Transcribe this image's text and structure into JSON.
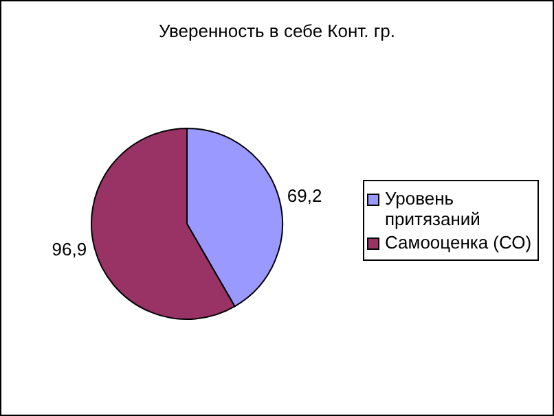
{
  "chart_data": {
    "type": "pie",
    "title": "Уверенность в себе Конт. гр.",
    "categories": [
      "Уровень притязаний",
      "Самооценка (СО)"
    ],
    "values": [
      69.2,
      96.9
    ],
    "colors": [
      "#9999ff",
      "#993366"
    ],
    "value_labels": [
      "69,2",
      "96,9"
    ],
    "legend": "right"
  }
}
